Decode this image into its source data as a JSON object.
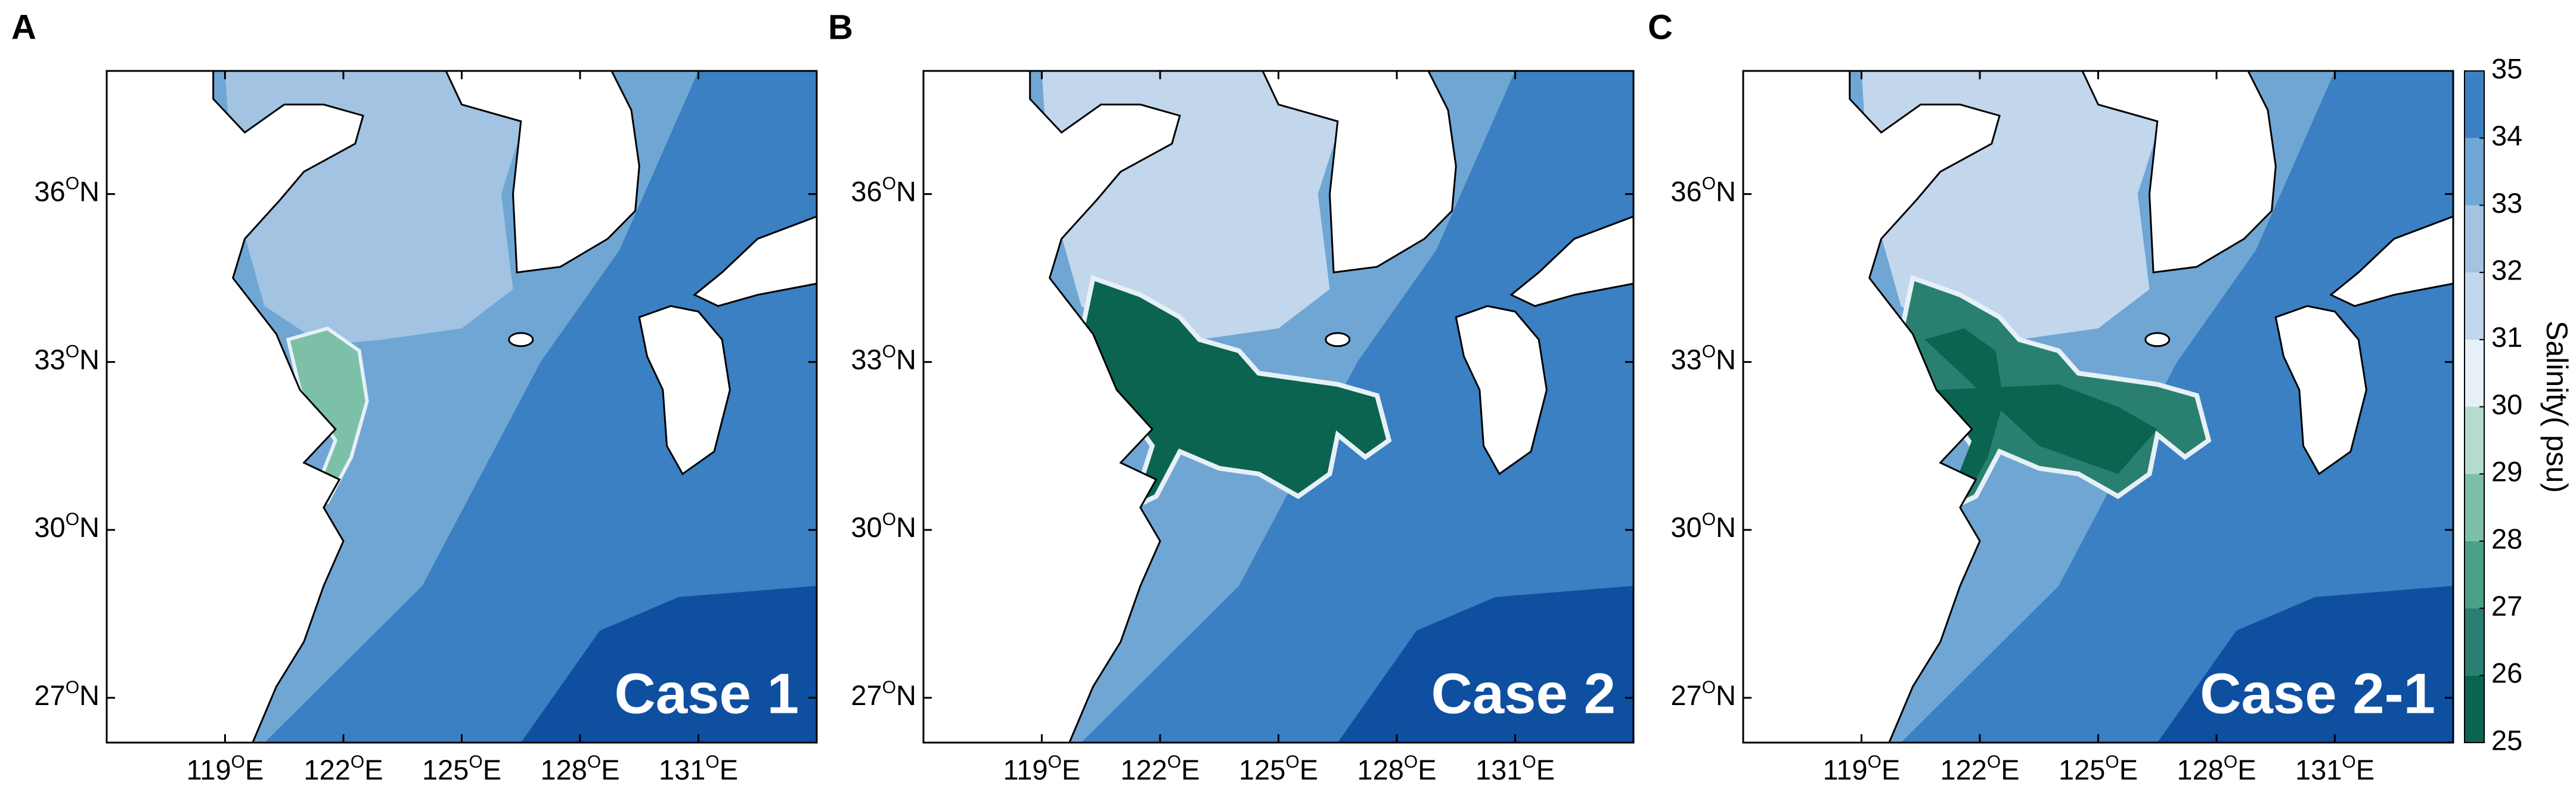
{
  "panels": [
    {
      "label": "A",
      "case": "Case 1"
    },
    {
      "label": "B",
      "case": "Case 2"
    },
    {
      "label": "C",
      "case": "Case 2-1"
    }
  ],
  "xlim": [
    116,
    134
  ],
  "ylim": [
    26.2,
    38.2
  ],
  "xticks": [
    {
      "value": 119,
      "sup": "O",
      "hemi": "E"
    },
    {
      "value": 122,
      "sup": "O",
      "hemi": "E"
    },
    {
      "value": 125,
      "sup": "O",
      "hemi": "E"
    },
    {
      "value": 128,
      "sup": "O",
      "hemi": "E"
    },
    {
      "value": 131,
      "sup": "O",
      "hemi": "E"
    }
  ],
  "yticks": [
    {
      "value": 36,
      "sup": "O",
      "hemi": "N"
    },
    {
      "value": 33,
      "sup": "O",
      "hemi": "N"
    },
    {
      "value": 30,
      "sup": "O",
      "hemi": "N"
    },
    {
      "value": 27,
      "sup": "O",
      "hemi": "N"
    }
  ],
  "colorbar": {
    "label": "Salinity( psu)",
    "lim": [
      25,
      35
    ],
    "ticks": [
      25,
      26,
      27,
      28,
      29,
      30,
      31,
      32,
      33,
      34,
      35
    ],
    "colors": [
      "#0a6450",
      "#2a8070",
      "#4ba08a",
      "#7cc0a8",
      "#b4dccc",
      "#e6f0f6",
      "#c2d6ec",
      "#a2c3e2",
      "#6fa6d4",
      "#3a80c2"
    ]
  }
}
